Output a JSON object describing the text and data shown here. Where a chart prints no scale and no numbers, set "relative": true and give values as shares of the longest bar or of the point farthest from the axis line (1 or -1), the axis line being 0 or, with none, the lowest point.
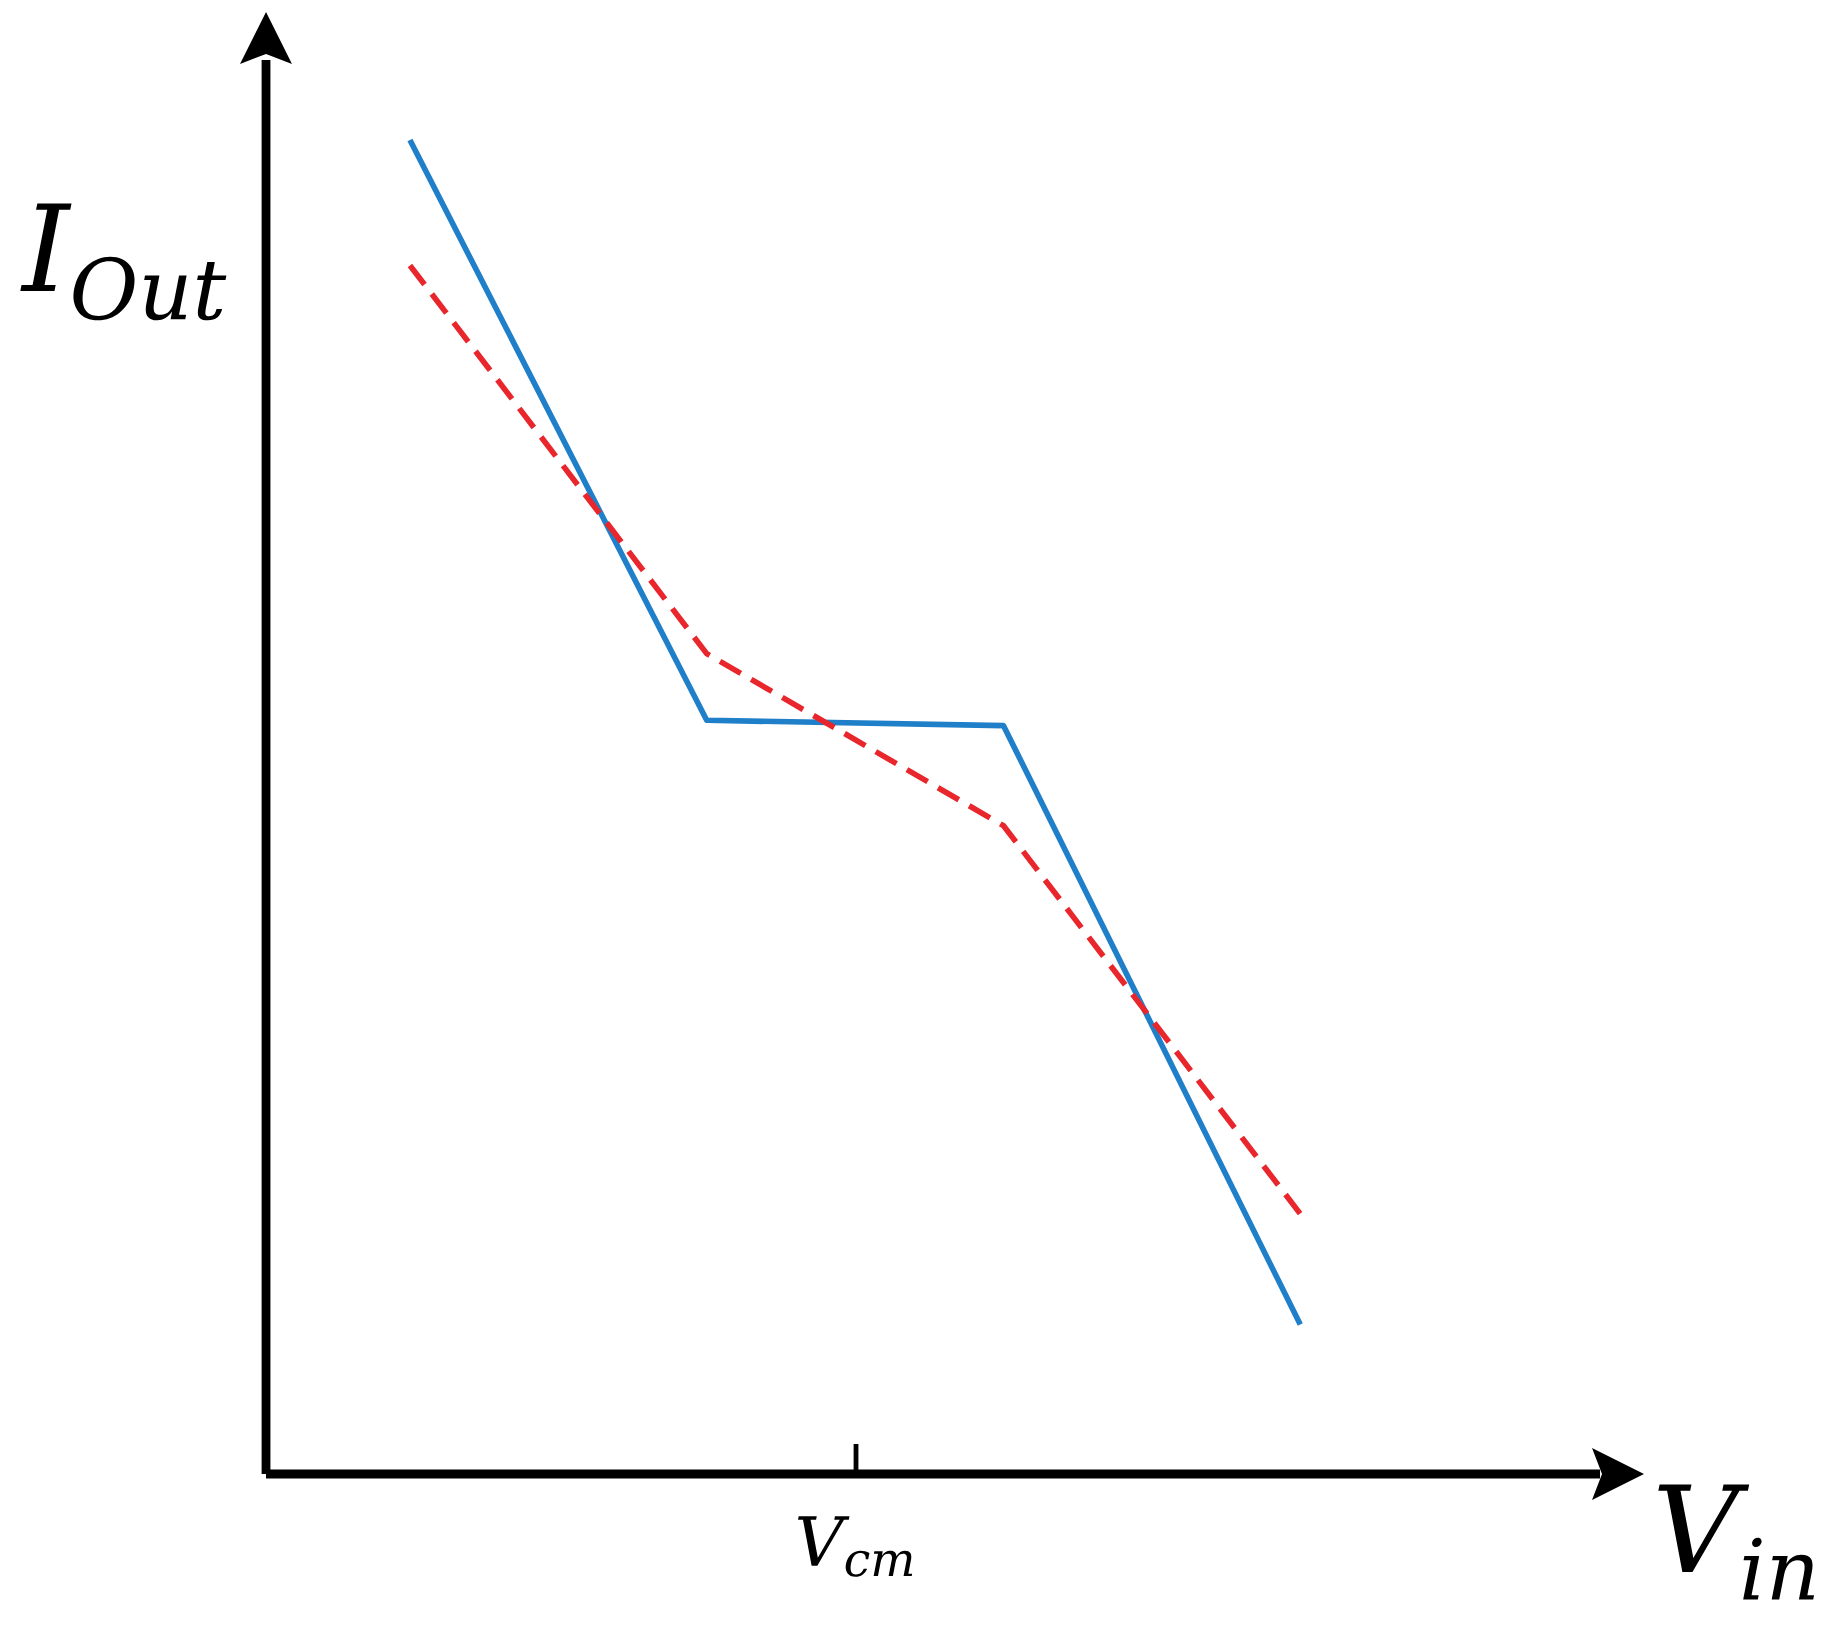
{
  "chart_data": {
    "type": "line",
    "relative": true,
    "xlabel": "V$_{in}$",
    "ylabel": "I$_{Out}$",
    "categories": [
      null,
      null,
      null,
      null
    ],
    "annotations": [
      "V$_{cm}$"
    ],
    "series": [
      {
        "color": "#1f7fc8",
        "line_style": "solid",
        "values": [
          1,
          0.565,
          0.561,
          0.112
        ]
      },
      {
        "color": "#e8262b",
        "line_style": "dashed",
        "values": [
          0.906,
          0.615,
          0.486,
          0.195
        ]
      }
    ],
    "marker": "none"
  }
}
